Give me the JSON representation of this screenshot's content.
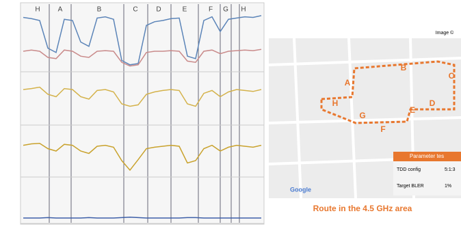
{
  "chart": {
    "type": "line",
    "segments": [
      "H",
      "A",
      "B",
      "C",
      "D",
      "E",
      "F",
      "G",
      "H"
    ],
    "panels": [
      {
        "series": [
          {
            "color": "#5b84b8",
            "values": [
              85,
              83,
              80,
              35,
              28,
              82,
              80,
              45,
              38,
              84,
              86,
              82,
              15,
              8,
              10,
              72,
              78,
              80,
              83,
              84,
              22,
              18,
              80,
              86,
              62,
              82,
              84,
              86,
              85,
              88
            ]
          },
          {
            "color": "#c98a8a",
            "values": [
              30,
              32,
              30,
              20,
              18,
              32,
              30,
              22,
              20,
              30,
              31,
              30,
              12,
              6,
              8,
              28,
              30,
              30,
              31,
              30,
              14,
              12,
              30,
              32,
              26,
              30,
              31,
              32,
              31,
              33
            ]
          }
        ]
      },
      {
        "series": [
          {
            "color": "#d4b24a",
            "values": [
              70,
              72,
              75,
              60,
              55,
              72,
              70,
              55,
              50,
              68,
              70,
              65,
              40,
              35,
              38,
              60,
              65,
              68,
              70,
              68,
              40,
              35,
              62,
              68,
              55,
              65,
              70,
              68,
              66,
              70
            ]
          }
        ]
      },
      {
        "series": [
          {
            "color": "#c9a22c",
            "values": [
              62,
              65,
              66,
              55,
              50,
              64,
              62,
              50,
              45,
              60,
              62,
              58,
              30,
              10,
              32,
              55,
              58,
              60,
              62,
              60,
              25,
              30,
              55,
              62,
              50,
              58,
              62,
              60,
              58,
              62
            ]
          }
        ]
      },
      {
        "series": [
          {
            "color": "#3d5fa8",
            "values": [
              8,
              8,
              8,
              9,
              8,
              8,
              8,
              8,
              9,
              8,
              8,
              8,
              9,
              10,
              9,
              8,
              8,
              8,
              8,
              8,
              9,
              9,
              8,
              8,
              8,
              8,
              8,
              8,
              8,
              8
            ]
          }
        ]
      }
    ],
    "ylim": [
      0,
      100
    ]
  },
  "map": {
    "attribution": "Image ©",
    "google": "Google",
    "labels": [
      "A",
      "B",
      "C",
      "D",
      "E",
      "F",
      "G",
      "H"
    ],
    "table": {
      "header": "Parameter tes",
      "rows": [
        [
          "TDD config",
          "5:1:3"
        ],
        [
          "Target BLER",
          "1%"
        ]
      ]
    },
    "caption": "Route in the 4.5 GHz area"
  }
}
